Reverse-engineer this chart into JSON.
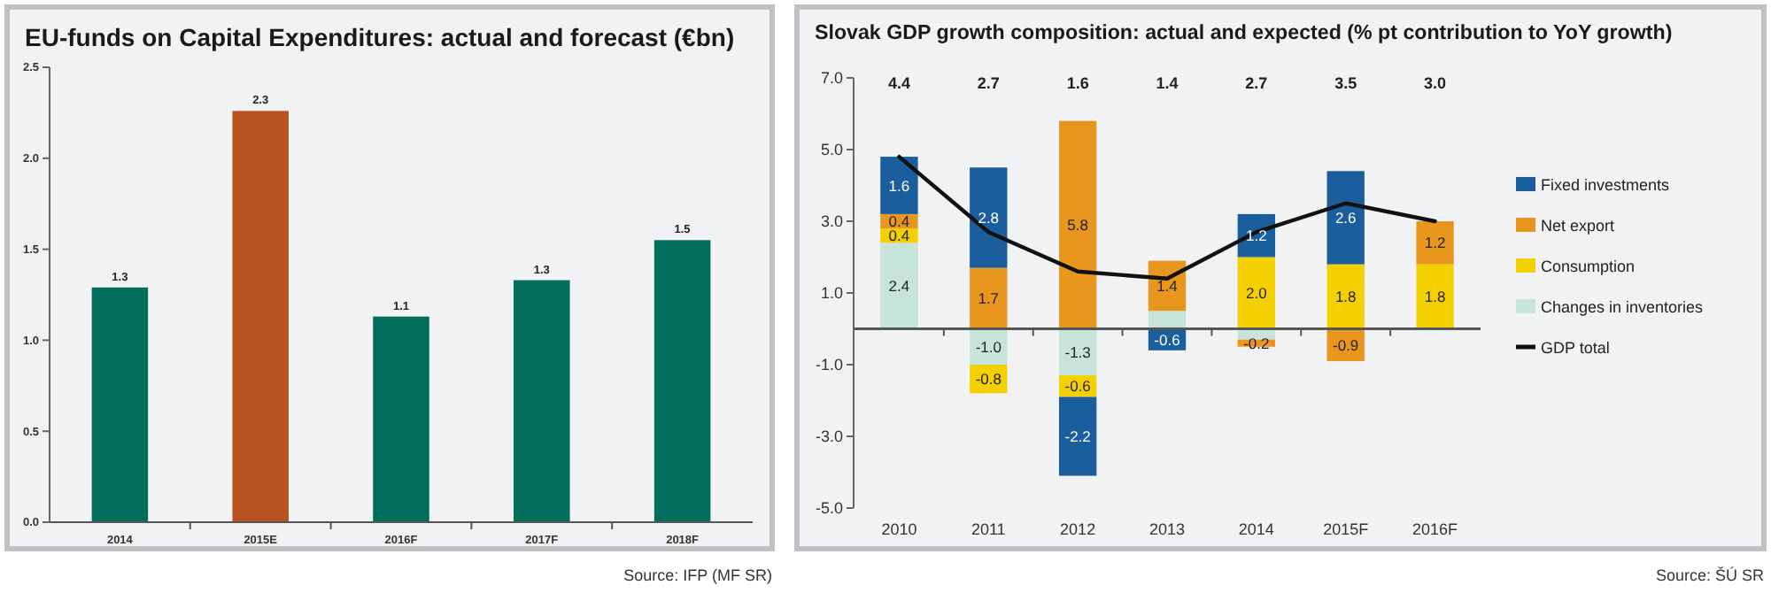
{
  "chart_data": [
    {
      "type": "bar",
      "title": "EU-funds on Capital Expenditures: actual and forecast (€bn)",
      "categories": [
        "2014",
        "2015E",
        "2016F",
        "2017F",
        "2018F"
      ],
      "values": [
        1.29,
        2.26,
        1.13,
        1.33,
        1.55
      ],
      "colors": [
        "#006e5a",
        "#b8521f",
        "#006e5a",
        "#006e5a",
        "#006e5a"
      ],
      "value_labels": [
        "1.3",
        "2.3",
        "1.1",
        "1.3",
        "1.5"
      ],
      "ylim": [
        0,
        2.5
      ],
      "yticks": [
        {
          "value": 0,
          "label": "0.0"
        },
        {
          "value": 0.5,
          "label": "0.5"
        },
        {
          "value": 1,
          "label": "1.0"
        },
        {
          "value": 1.5,
          "label": "1.5"
        },
        {
          "value": 2,
          "label": "2.0"
        },
        {
          "value": 2.5,
          "label": "2.5"
        }
      ],
      "grid": false,
      "legend": false,
      "annotations": [
        "Source: IFP (MF SR)"
      ]
    },
    {
      "type": "bar",
      "stacked": true,
      "title": "Slovak GDP growth composition: actual and expected (% pt contribution to YoY growth)",
      "categories": [
        "2010",
        "2011",
        "2012",
        "2013",
        "2014",
        "2015F",
        "2016F"
      ],
      "series": [
        {
          "name": "Changes in inventories",
          "color": "#c6e4da",
          "values": [
            2.4,
            -1.0,
            -1.3,
            0.5,
            -0.3,
            null,
            null
          ],
          "value_labels": [
            "2.4",
            "-1.0",
            "-1.3",
            null,
            null,
            null,
            null
          ]
        },
        {
          "name": "Consumption",
          "color": "#f4d000",
          "values": [
            0.4,
            -0.8,
            -0.6,
            null,
            2.0,
            1.8,
            1.8
          ],
          "value_labels": [
            "0.4",
            "-0.8",
            "-0.6",
            null,
            "2.0",
            "1.8",
            "1.8"
          ]
        },
        {
          "name": "Net export",
          "color": "#e8961e",
          "values": [
            0.4,
            1.7,
            5.8,
            1.4,
            -0.2,
            -0.9,
            1.2
          ],
          "value_labels": [
            "0.4",
            "1.7",
            "5.8",
            "1.4",
            "-0.2",
            "-0.9",
            "1.2"
          ]
        },
        {
          "name": "Fixed investments",
          "color": "#1a5e9e",
          "values": [
            1.6,
            2.8,
            -2.2,
            -0.6,
            1.2,
            2.6,
            null
          ],
          "value_labels": [
            "1.6",
            "2.8",
            "-2.2",
            "-0.6",
            "1.2",
            "2.6",
            null
          ]
        },
        {
          "name": "GDP total",
          "type": "line",
          "color": "#111111",
          "values": [
            4.8,
            2.7,
            1.6,
            1.4,
            2.7,
            3.5,
            3.0
          ]
        }
      ],
      "ylim": [
        -5,
        7
      ],
      "yticks": [
        {
          "value": -5,
          "label": "-5.0"
        },
        {
          "value": -3,
          "label": "-3.0"
        },
        {
          "value": -1,
          "label": "-1.0"
        },
        {
          "value": 1,
          "label": "1.0"
        },
        {
          "value": 3,
          "label": "3.0"
        },
        {
          "value": 5,
          "label": "5.0"
        },
        {
          "value": 7,
          "label": "7.0"
        }
      ],
      "grid": false,
      "legend": "right",
      "annotations": [
        "4.4",
        "2.7",
        "1.6",
        "1.4",
        "2.7",
        "3.5",
        "3.0",
        "Source: ŠÚ SR"
      ]
    }
  ]
}
